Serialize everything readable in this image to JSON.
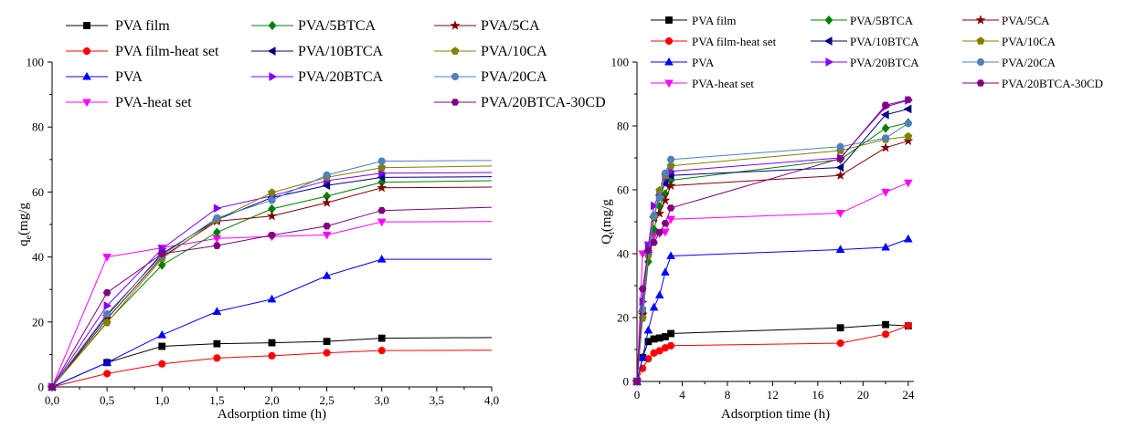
{
  "chart_data": [
    {
      "type": "line",
      "xlabel": "Adsorption time (h)",
      "ylabel_main": "q",
      "ylabel_sub": "e",
      "ylabel_rest": "(mg/g",
      "xlim": [
        0,
        4.0
      ],
      "ylim": [
        0,
        100
      ],
      "x_ticks": [
        "0,0",
        "0,5",
        "1,0",
        "1,5",
        "2,0",
        "2,5",
        "3,0",
        "3,5",
        "4,0"
      ],
      "y_ticks": [
        "0",
        "20",
        "40",
        "60",
        "80",
        "100"
      ],
      "grid": false,
      "legend_position": "top",
      "series": [
        {
          "name": "PVA film",
          "color": "#000000",
          "marker": "square",
          "x": [
            0,
            0.5,
            1.0,
            1.5,
            2.0,
            2.5,
            3.0,
            4.0
          ],
          "y": [
            0,
            7.5,
            12.5,
            13.3,
            13.6,
            14.0,
            15.0,
            15.2
          ]
        },
        {
          "name": "PVA film-heat set",
          "color": "#ff0000",
          "marker": "circle",
          "x": [
            0,
            0.5,
            1.0,
            1.5,
            2.0,
            2.5,
            3.0,
            4.0
          ],
          "y": [
            0,
            4.1,
            7.1,
            8.9,
            9.6,
            10.5,
            11.2,
            11.3
          ]
        },
        {
          "name": "PVA",
          "color": "#0000ff",
          "marker": "triangle-up",
          "x": [
            0,
            0.5,
            1.0,
            1.5,
            2.0,
            2.5,
            3.0,
            4.0
          ],
          "y": [
            0,
            7.5,
            16.0,
            23.2,
            27.0,
            34.2,
            39.3,
            39.3
          ]
        },
        {
          "name": "PVA-heat set",
          "color": "#ff00ff",
          "marker": "triangle-down",
          "x": [
            0,
            0.5,
            1.0,
            1.5,
            2.0,
            2.5,
            3.0,
            4.0
          ],
          "y": [
            0,
            40.0,
            42.8,
            45.7,
            46.3,
            46.8,
            50.8,
            50.9
          ]
        },
        {
          "name": "PVA/5BTCA",
          "color": "#008000",
          "marker": "diamond",
          "x": [
            0,
            0.5,
            1.0,
            1.5,
            2.0,
            2.5,
            3.0,
            4.0
          ],
          "y": [
            0,
            20.0,
            37.5,
            47.6,
            54.8,
            58.7,
            63.0,
            63.5
          ]
        },
        {
          "name": "PVA/10BTCA",
          "color": "#000080",
          "marker": "triangle-left",
          "x": [
            0,
            0.5,
            1.0,
            1.5,
            2.0,
            2.5,
            3.0,
            4.0
          ],
          "y": [
            0,
            22.0,
            41.0,
            51.5,
            58.3,
            62.0,
            64.5,
            64.7
          ]
        },
        {
          "name": "PVA/20BTCA",
          "color": "#8000ff",
          "marker": "triangle-right",
          "x": [
            0,
            0.5,
            1.0,
            1.5,
            2.0,
            2.5,
            3.0,
            4.0
          ],
          "y": [
            0,
            25.0,
            42.5,
            55.0,
            58.8,
            63.5,
            65.8,
            66.0
          ]
        },
        {
          "name": "PVA/5CA",
          "color": "#800000",
          "marker": "star",
          "x": [
            0,
            0.5,
            1.0,
            1.5,
            2.0,
            2.5,
            3.0,
            4.0
          ],
          "y": [
            0,
            21.0,
            40.0,
            51.0,
            52.6,
            56.7,
            61.3,
            61.5
          ]
        },
        {
          "name": "PVA/10CA",
          "color": "#808000",
          "marker": "pentagon",
          "x": [
            0,
            0.5,
            1.0,
            1.5,
            2.0,
            2.5,
            3.0,
            4.0
          ],
          "y": [
            0,
            19.8,
            39.5,
            51.5,
            59.8,
            64.5,
            67.5,
            68.0
          ]
        },
        {
          "name": "PVA/20CA",
          "color": "#4f81bd",
          "marker": "circle",
          "x": [
            0,
            0.5,
            1.0,
            1.5,
            2.0,
            2.5,
            3.0,
            4.0
          ],
          "y": [
            0,
            22.5,
            40.5,
            52.0,
            57.5,
            65.2,
            69.5,
            69.7
          ]
        },
        {
          "name": "PVA/20BTCA-30CD",
          "color": "#800080",
          "marker": "hexagon",
          "x": [
            0,
            0.5,
            1.0,
            1.5,
            2.0,
            2.5,
            3.0,
            4.0
          ],
          "y": [
            0,
            29.0,
            41.0,
            43.5,
            46.7,
            49.5,
            54.3,
            55.3
          ]
        }
      ]
    },
    {
      "type": "line",
      "xlabel": "Adsorption time (h)",
      "ylabel_main": "Q",
      "ylabel_sub": "t",
      "ylabel_rest": "(mg/g",
      "xlim": [
        0,
        24.5
      ],
      "ylim": [
        0,
        100
      ],
      "x_ticks": [
        "0",
        "4",
        "8",
        "12",
        "16",
        "20",
        "24"
      ],
      "y_ticks": [
        "0",
        "20",
        "40",
        "60",
        "80",
        "100"
      ],
      "grid": false,
      "legend_position": "top",
      "series": [
        {
          "name": "PVA film",
          "color": "#000000",
          "marker": "square",
          "x": [
            0,
            0.5,
            1.0,
            1.5,
            2.0,
            2.5,
            3.0,
            18,
            22,
            24
          ],
          "y": [
            0,
            7.5,
            12.5,
            13.3,
            13.6,
            14.0,
            15.0,
            16.8,
            17.8,
            17.4
          ]
        },
        {
          "name": "PVA film-heat set",
          "color": "#ff0000",
          "marker": "circle",
          "x": [
            0,
            0.5,
            1.0,
            1.5,
            2.0,
            2.5,
            3.0,
            18,
            22,
            24
          ],
          "y": [
            0,
            4.1,
            7.1,
            8.9,
            9.6,
            10.5,
            11.2,
            12.0,
            14.8,
            17.5
          ]
        },
        {
          "name": "PVA",
          "color": "#0000ff",
          "marker": "triangle-up",
          "x": [
            0,
            0.5,
            1.0,
            1.5,
            2.0,
            2.5,
            3.0,
            18,
            22,
            24
          ],
          "y": [
            0,
            7.5,
            16.0,
            23.2,
            27.0,
            34.2,
            39.3,
            41.3,
            42.0,
            44.6
          ]
        },
        {
          "name": "PVA-heat set",
          "color": "#ff00ff",
          "marker": "triangle-down",
          "x": [
            0,
            0.5,
            1.0,
            1.5,
            2.0,
            2.5,
            3.0,
            18,
            22,
            24
          ],
          "y": [
            0,
            40.0,
            42.8,
            45.7,
            46.3,
            46.8,
            50.8,
            52.7,
            59.3,
            62.2
          ]
        },
        {
          "name": "PVA/5BTCA",
          "color": "#008000",
          "marker": "diamond",
          "x": [
            0,
            0.5,
            1.0,
            1.5,
            2.0,
            2.5,
            3.0,
            18,
            22,
            24
          ],
          "y": [
            0,
            20.0,
            37.5,
            47.6,
            54.8,
            58.7,
            63.0,
            69.5,
            79.3,
            81.0
          ]
        },
        {
          "name": "PVA/10BTCA",
          "color": "#000080",
          "marker": "triangle-left",
          "x": [
            0,
            0.5,
            1.0,
            1.5,
            2.0,
            2.5,
            3.0,
            18,
            22,
            24
          ],
          "y": [
            0,
            22.0,
            41.0,
            51.5,
            58.3,
            62.0,
            64.5,
            67.0,
            83.5,
            85.3
          ]
        },
        {
          "name": "PVA/20BTCA",
          "color": "#8000ff",
          "marker": "triangle-right",
          "x": [
            0,
            0.5,
            1.0,
            1.5,
            2.0,
            2.5,
            3.0,
            18,
            22,
            24
          ],
          "y": [
            0,
            25.0,
            42.5,
            55.0,
            58.8,
            63.5,
            65.8,
            70.0,
            86.0,
            88.0
          ]
        },
        {
          "name": "PVA/5CA",
          "color": "#800000",
          "marker": "star",
          "x": [
            0,
            0.5,
            1.0,
            1.5,
            2.0,
            2.5,
            3.0,
            18,
            22,
            24
          ],
          "y": [
            0,
            21.0,
            40.0,
            51.0,
            52.6,
            56.7,
            61.3,
            64.5,
            73.2,
            75.3
          ]
        },
        {
          "name": "PVA/10CA",
          "color": "#808000",
          "marker": "pentagon",
          "x": [
            0,
            0.5,
            1.0,
            1.5,
            2.0,
            2.5,
            3.0,
            18,
            22,
            24
          ],
          "y": [
            0,
            19.8,
            39.5,
            51.5,
            59.8,
            64.5,
            67.5,
            72.3,
            75.8,
            76.7
          ]
        },
        {
          "name": "PVA/20CA",
          "color": "#4f81bd",
          "marker": "circle",
          "x": [
            0,
            0.5,
            1.0,
            1.5,
            2.0,
            2.5,
            3.0,
            18,
            22,
            24
          ],
          "y": [
            0,
            22.5,
            40.5,
            52.0,
            57.5,
            65.2,
            69.5,
            73.5,
            76.2,
            80.8
          ]
        },
        {
          "name": "PVA/20BTCA-30CD",
          "color": "#800080",
          "marker": "hexagon",
          "x": [
            0,
            0.5,
            1.0,
            1.5,
            2.0,
            2.5,
            3.0,
            18,
            22,
            24
          ],
          "y": [
            0,
            29.0,
            41.0,
            43.5,
            46.7,
            49.5,
            54.3,
            69.8,
            86.5,
            88.2
          ]
        }
      ]
    }
  ]
}
